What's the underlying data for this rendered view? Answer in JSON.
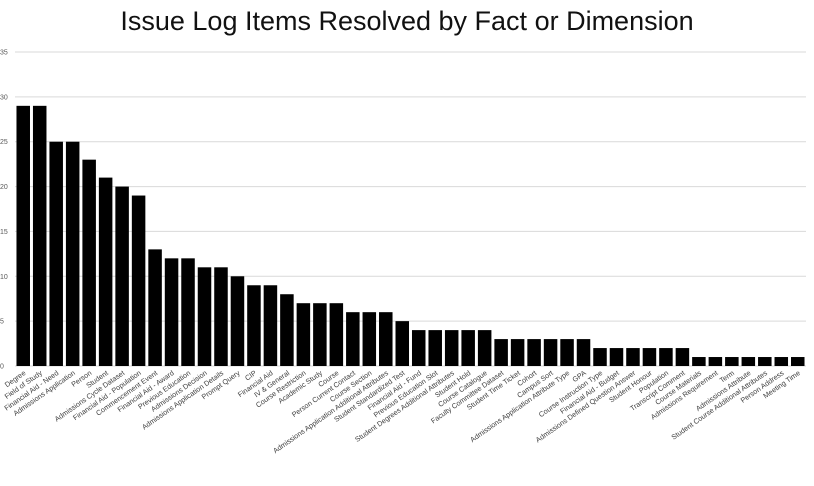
{
  "chart_data": {
    "type": "bar",
    "title": "Issue Log Items Resolved by Fact or Dimension",
    "xlabel": "",
    "ylabel": "",
    "ylim": [
      0,
      35
    ],
    "yticks": [
      0,
      5,
      10,
      15,
      20,
      25,
      30,
      35
    ],
    "grid": true,
    "legend": "none",
    "bar_color": "#000000",
    "grid_color": "#d9d9d9",
    "categories": [
      "Degree",
      "Field of Study",
      "Financial Aid - Need",
      "Admissions Application",
      "Person",
      "Student",
      "Admissions Cycle Dataset",
      "Financial Aid - Population",
      "Commencement Event",
      "Financial Aid - Award",
      "Previous Education",
      "Admissions Decision",
      "Admissions Application Details",
      "Prompt Query",
      "CIP",
      "Financial Aid",
      "IV & General",
      "Course Restriction",
      "Academic Study",
      "Course",
      "Person Current Contact",
      "Course Section",
      "Admissions Application Additional Attributes",
      "Student Standardized Test",
      "Financial Aid - Fund",
      "Previous Education Slot",
      "Student Degrees Additional Attributes",
      "Student Hold",
      "Course Catalogue",
      "Faculty Committee Dataset",
      "Student Time Ticket",
      "Cohort",
      "Campus Sort",
      "Admissions Application Attribute Type",
      "GPA",
      "Course Instruction Type",
      "Financial Aid - Budget",
      "Admissions Defined Question Answer",
      "Student Honour",
      "Population",
      "Transcript Comment",
      "Course Materials",
      "Admissions Requirement",
      "Term",
      "Admissions Attribute",
      "Student Course Additional Attributes",
      "Person Address",
      "Meeting Time"
    ],
    "values": [
      29,
      29,
      25,
      25,
      23,
      21,
      20,
      19,
      13,
      12,
      12,
      11,
      11,
      10,
      9,
      9,
      8,
      7,
      7,
      7,
      6,
      6,
      6,
      5,
      4,
      4,
      4,
      4,
      4,
      3,
      3,
      3,
      3,
      3,
      3,
      2,
      2,
      2,
      2,
      2,
      2,
      1,
      1,
      1,
      1,
      1,
      1,
      1
    ]
  }
}
